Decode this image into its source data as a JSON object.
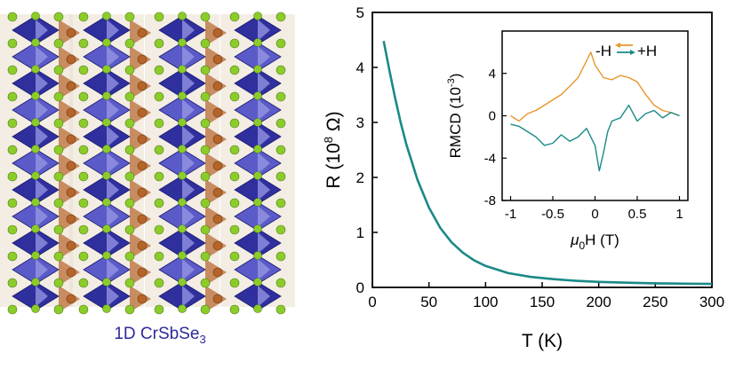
{
  "crystal": {
    "caption_prefix": "1D CrSbSe",
    "caption_subscript": "3",
    "colors": {
      "cr_octahedra": "#2f2f9e",
      "sb_polyhedra": "#c07a4a",
      "se_atoms": "#8ccc2a",
      "sb_atoms": "#b5652a"
    }
  },
  "chart_data": [
    {
      "type": "line",
      "xlabel": "T (K)",
      "ylabel": "R (10^8 Ω)",
      "ylabel_parts": {
        "main": "R (10",
        "sup": "8",
        "unit": " Ω)"
      },
      "xlim": [
        0,
        300
      ],
      "ylim": [
        0,
        5
      ],
      "xticks": [
        0,
        50,
        100,
        150,
        200,
        250,
        300
      ],
      "yticks": [
        0,
        1,
        2,
        3,
        4,
        5
      ],
      "color": "#1a8a87",
      "series": [
        {
          "x": [
            10,
            15,
            20,
            25,
            30,
            40,
            50,
            60,
            70,
            80,
            90,
            100,
            120,
            140,
            160,
            180,
            200,
            225,
            250,
            275,
            300
          ],
          "values": [
            4.48,
            3.95,
            3.45,
            3.0,
            2.6,
            1.95,
            1.45,
            1.08,
            0.82,
            0.63,
            0.49,
            0.39,
            0.26,
            0.19,
            0.15,
            0.12,
            0.1,
            0.085,
            0.075,
            0.068,
            0.063
          ]
        }
      ]
    },
    {
      "type": "line",
      "xlabel": "μ0H (T)",
      "xlabel_parts": {
        "mu": "μ",
        "sub": "0",
        "rest": "H (T)"
      },
      "ylabel": "RMCD (10^-3)",
      "ylabel_parts": {
        "main": "RMCD (10",
        "sup": "-3",
        "unit": ")"
      },
      "xlim": [
        -1.1,
        1.1
      ],
      "ylim": [
        -8,
        8
      ],
      "xticks": [
        -1,
        -0.5,
        0,
        0.5,
        1
      ],
      "xtick_labels": [
        "-1",
        "-0.5",
        "0",
        "0.5",
        "1"
      ],
      "yticks": [
        -8,
        -4,
        0,
        4
      ],
      "yticks_visible": [
        -8,
        -4,
        0,
        4
      ],
      "legend": {
        "position": "top-right",
        "minus_label": "-H",
        "plus_label": "+H"
      },
      "series": [
        {
          "name": "-H",
          "color": "#e8962a",
          "x": [
            -1.0,
            -0.9,
            -0.8,
            -0.7,
            -0.6,
            -0.5,
            -0.4,
            -0.3,
            -0.2,
            -0.1,
            -0.05,
            0.0,
            0.1,
            0.2,
            0.3,
            0.4,
            0.5,
            0.6,
            0.7,
            0.8,
            0.9,
            1.0
          ],
          "values": [
            0.0,
            -0.5,
            0.2,
            0.5,
            1.0,
            1.5,
            2.0,
            2.8,
            3.6,
            5.2,
            6.0,
            4.8,
            3.6,
            3.4,
            3.8,
            3.6,
            3.2,
            2.0,
            1.0,
            0.5,
            0.3,
            0.0
          ]
        },
        {
          "name": "+H",
          "color": "#1a8a87",
          "x": [
            -1.0,
            -0.9,
            -0.8,
            -0.7,
            -0.6,
            -0.5,
            -0.4,
            -0.3,
            -0.2,
            -0.1,
            0.0,
            0.05,
            0.1,
            0.15,
            0.2,
            0.3,
            0.4,
            0.5,
            0.6,
            0.7,
            0.8,
            0.9,
            1.0
          ],
          "values": [
            -0.8,
            -1.0,
            -1.5,
            -2.0,
            -2.8,
            -2.6,
            -1.8,
            -2.4,
            -2.0,
            -1.2,
            -2.8,
            -5.2,
            -3.5,
            -1.5,
            -0.5,
            -0.2,
            1.0,
            -0.5,
            0.2,
            0.5,
            -0.2,
            0.3,
            0.0
          ]
        }
      ]
    }
  ]
}
